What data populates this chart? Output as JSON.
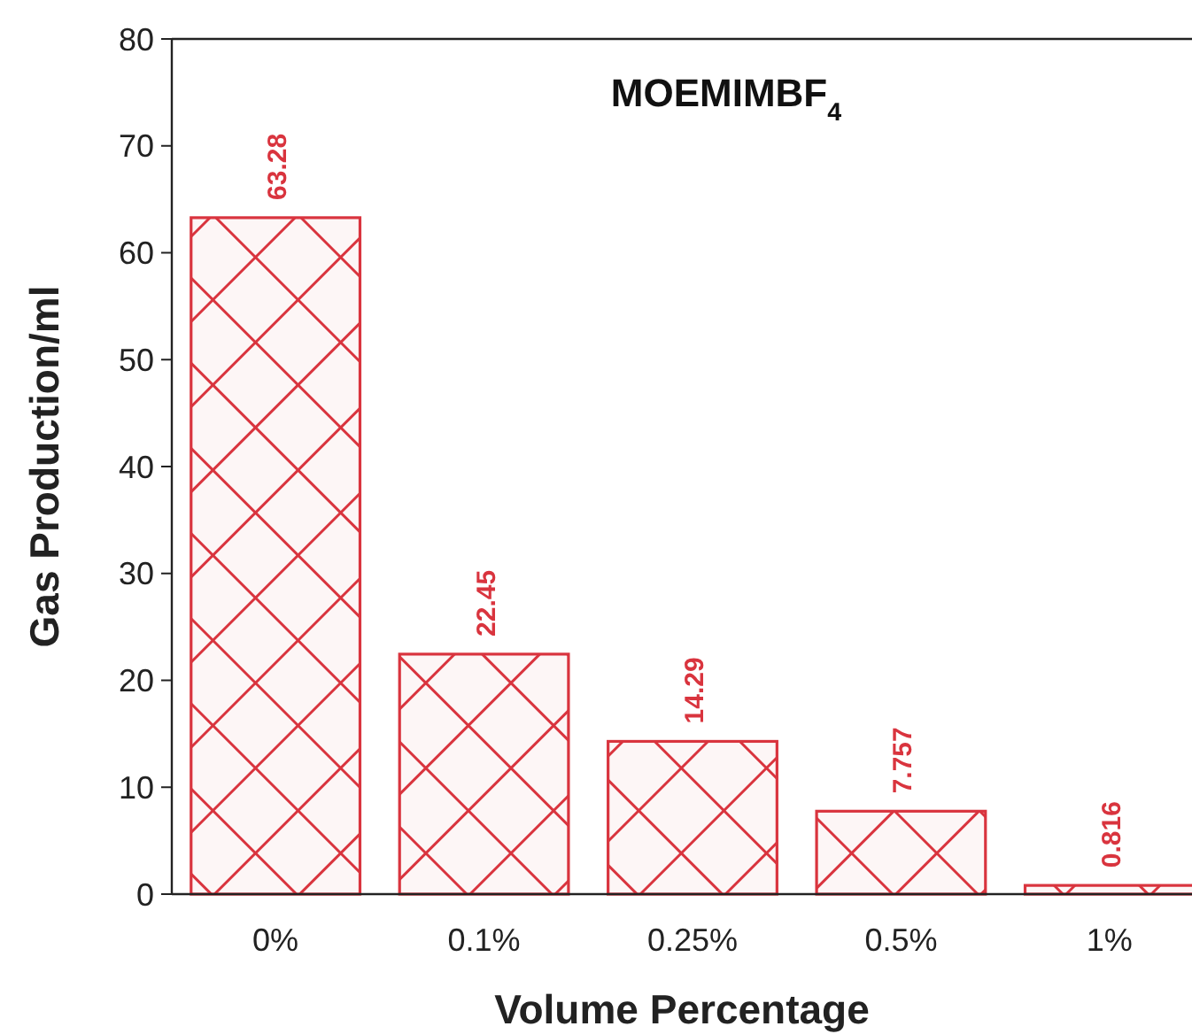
{
  "chart_data": {
    "type": "bar",
    "title": "MOEMIMBF$_{4}$",
    "xlabel": "Volume Percentage",
    "ylabel": "Gas Production/ml",
    "categories": [
      "0%",
      "0.1%",
      "0.25%",
      "0.5%",
      "1%"
    ],
    "values": [
      63.28,
      22.45,
      14.29,
      7.757,
      0.816
    ],
    "value_labels": [
      "63.28",
      "22.45",
      "14.29",
      "7.757",
      "0.816"
    ],
    "color": "#d9343e",
    "ylim": [
      0,
      80
    ],
    "yticks": [
      0,
      10,
      20,
      30,
      40,
      50,
      60,
      70,
      80
    ],
    "grid": false
  }
}
